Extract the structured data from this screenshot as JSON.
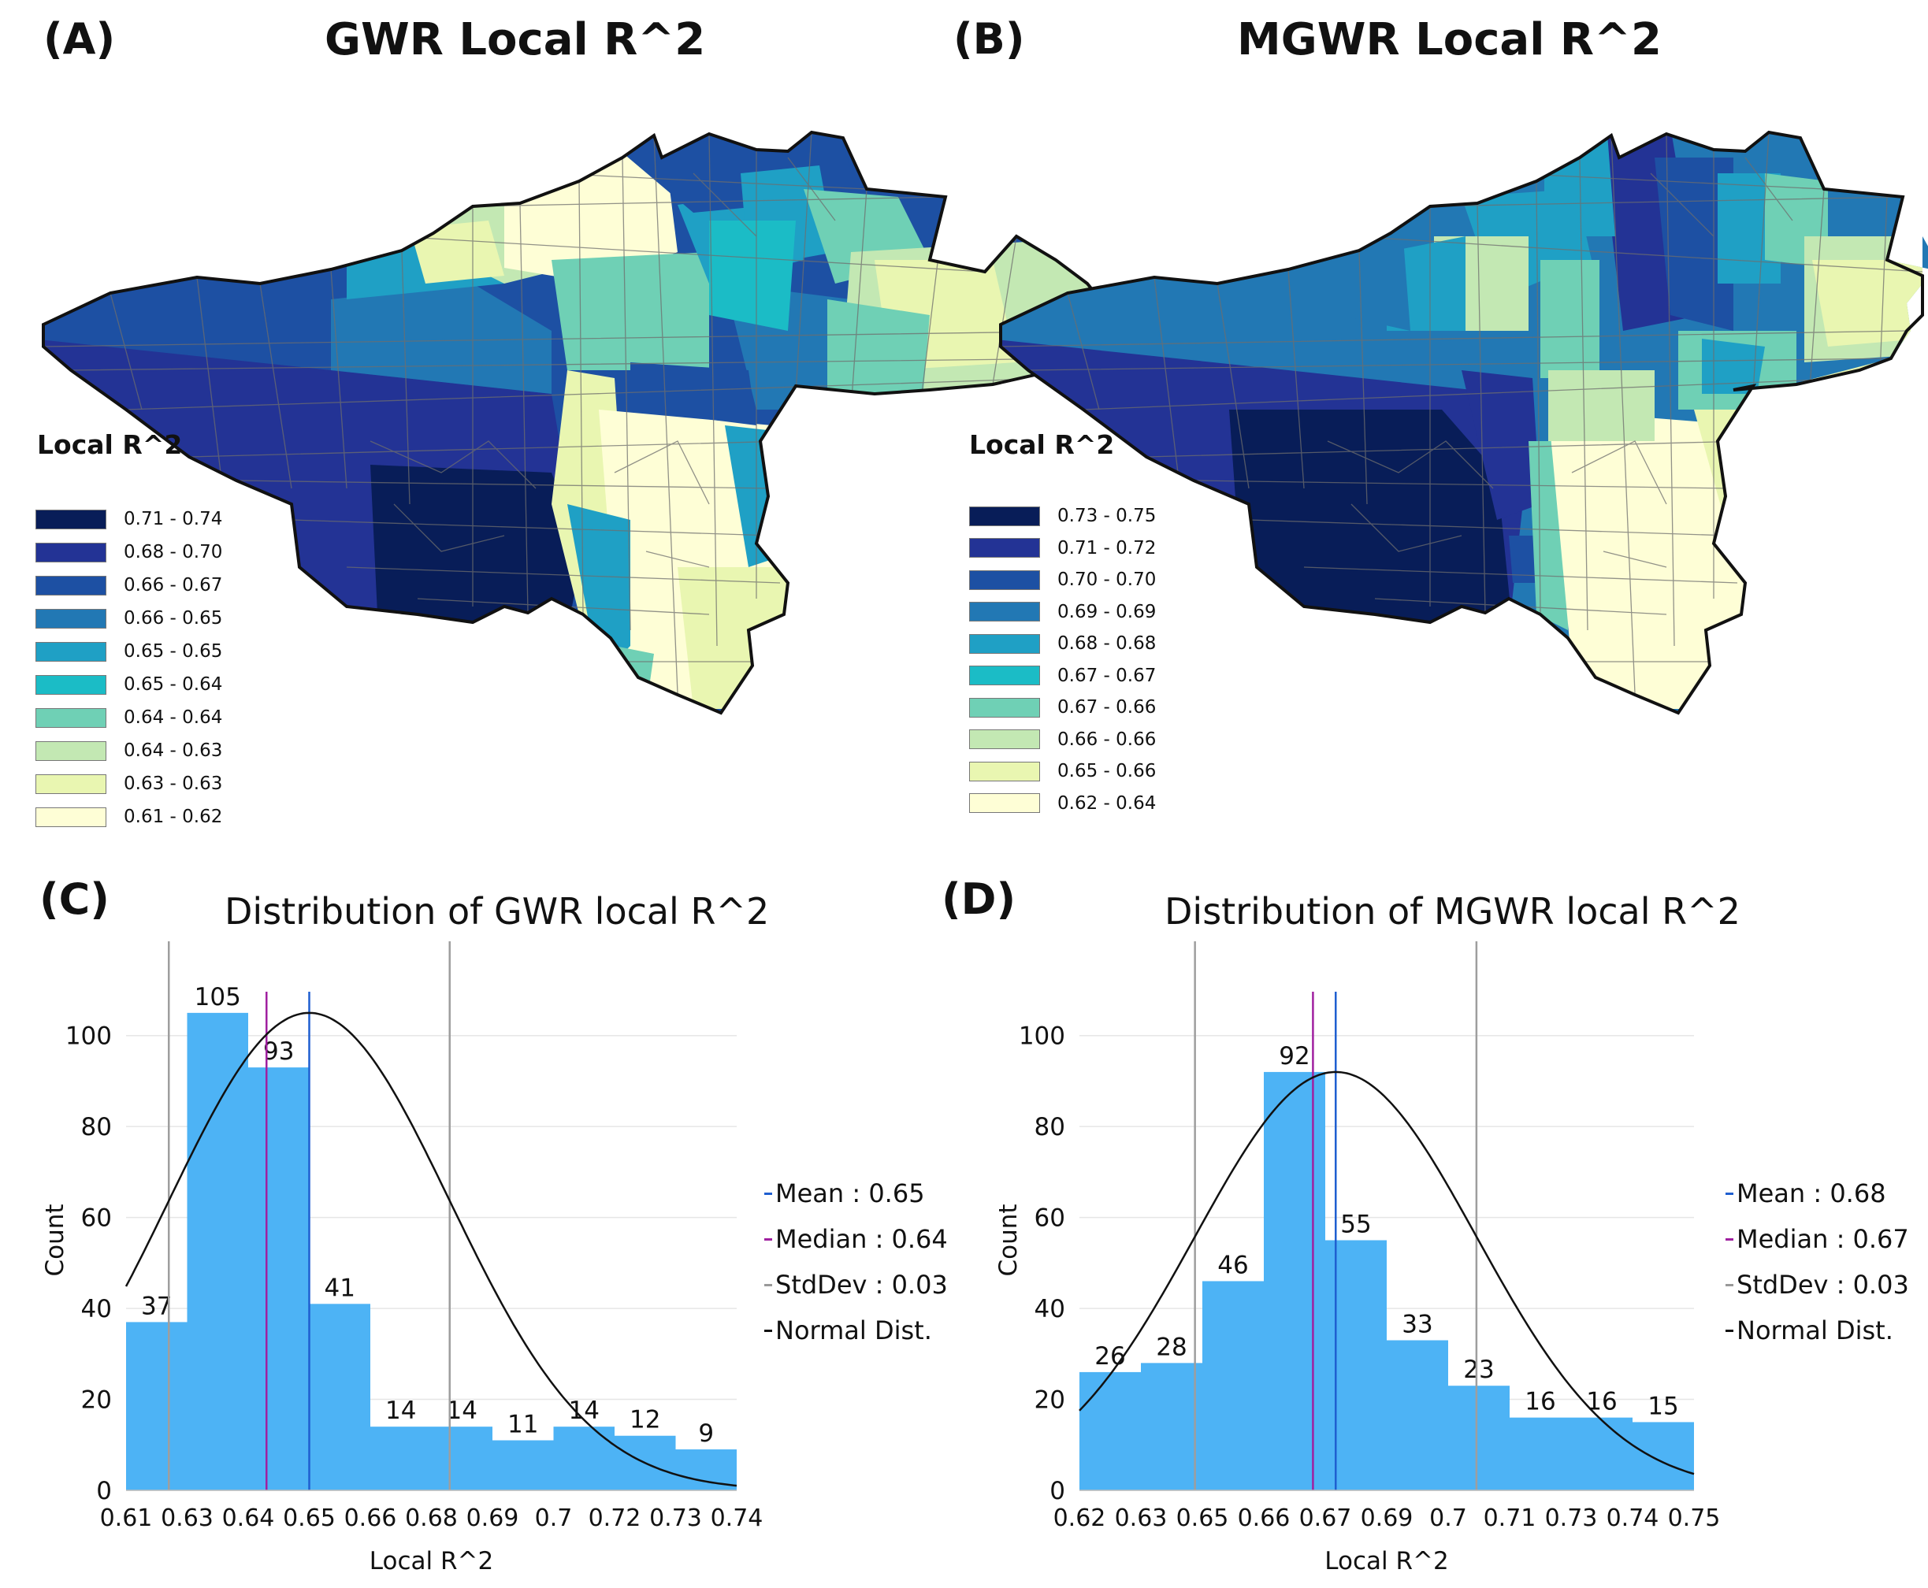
{
  "panels": {
    "A": {
      "label": "(A)",
      "title": "GWR Local R^2",
      "legend_title": "Local R^2",
      "legend": [
        {
          "range": "0.71 - 0.74",
          "color": "#081d58"
        },
        {
          "range": "0.68 - 0.70",
          "color": "#233395"
        },
        {
          "range": "0.66 - 0.67",
          "color": "#1d50a3"
        },
        {
          "range": "0.66 - 0.65",
          "color": "#2278b4"
        },
        {
          "range": "0.65 - 0.65",
          "color": "#1fa0c5"
        },
        {
          "range": "0.65 - 0.64",
          "color": "#1bbcc6"
        },
        {
          "range": "0.64 - 0.64",
          "color": "#6fd0b5"
        },
        {
          "range": "0.64 - 0.63",
          "color": "#c3e8b3"
        },
        {
          "range": "0.63 - 0.63",
          "color": "#e9f6b1"
        },
        {
          "range": "0.61 - 0.62",
          "color": "#fefed6"
        }
      ]
    },
    "B": {
      "label": "(B)",
      "title": "MGWR Local R^2",
      "legend_title": "Local R^2",
      "legend": [
        {
          "range": "0.73 - 0.75",
          "color": "#081d58"
        },
        {
          "range": "0.71 - 0.72",
          "color": "#233395"
        },
        {
          "range": "0.70 - 0.70",
          "color": "#1d50a3"
        },
        {
          "range": "0.69 - 0.69",
          "color": "#2278b4"
        },
        {
          "range": "0.68 - 0.68",
          "color": "#1fa0c5"
        },
        {
          "range": "0.67 - 0.67",
          "color": "#1bbcc6"
        },
        {
          "range": "0.67 - 0.66",
          "color": "#6fd0b5"
        },
        {
          "range": "0.66 - 0.66",
          "color": "#c3e8b3"
        },
        {
          "range": "0.65 - 0.66",
          "color": "#e9f6b1"
        },
        {
          "range": "0.62 - 0.64",
          "color": "#fefed6"
        }
      ]
    },
    "C": {
      "label": "(C)",
      "title": "Distribution of GWR local R^2",
      "stats": [
        {
          "text": "Mean : 0.65",
          "color": "#1f5fd0"
        },
        {
          "text": "Median : 0.64",
          "color": "#a020a0"
        },
        {
          "text": "StdDev : 0.03",
          "color": "#999999"
        },
        {
          "text": "Normal Dist.",
          "color": "#111111"
        }
      ]
    },
    "D": {
      "label": "(D)",
      "title": "Distribution of MGWR local R^2",
      "stats": [
        {
          "text": "Mean : 0.68",
          "color": "#1f5fd0"
        },
        {
          "text": "Median : 0.67",
          "color": "#a020a0"
        },
        {
          "text": "StdDev : 0.03",
          "color": "#999999"
        },
        {
          "text": "Normal Dist.",
          "color": "#111111"
        }
      ]
    }
  },
  "chart_data": [
    {
      "type": "bar",
      "title": "Distribution of GWR local R^2",
      "xlabel": "Local R^2",
      "ylabel": "Count",
      "x_ticks": [
        "0.61",
        "0.63",
        "0.64",
        "0.65",
        "0.66",
        "0.68",
        "0.69",
        "0.7",
        "0.72",
        "0.73",
        "0.74"
      ],
      "values": [
        37,
        105,
        93,
        41,
        14,
        14,
        11,
        14,
        12,
        9
      ],
      "y_ticks": [
        0,
        20,
        40,
        60,
        80,
        100
      ],
      "ylim": [
        0,
        110
      ],
      "bar_color": "#4db3f5",
      "mean": 0.65,
      "median": 0.64,
      "stddev": 0.03,
      "mean_pos": 3.0,
      "median_pos": 2.3,
      "sd_pos": [
        0.7,
        5.3
      ],
      "normal_peak": 105,
      "normal_sigma": 2.3,
      "grid": true
    },
    {
      "type": "bar",
      "title": "Distribution of MGWR local R^2",
      "xlabel": "Local R^2",
      "ylabel": "Count",
      "x_ticks": [
        "0.62",
        "0.63",
        "0.65",
        "0.66",
        "0.67",
        "0.69",
        "0.7",
        "0.71",
        "0.73",
        "0.74",
        "0.75"
      ],
      "values": [
        26,
        28,
        46,
        92,
        55,
        33,
        23,
        16,
        16,
        15
      ],
      "y_ticks": [
        0,
        20,
        40,
        60,
        80,
        100
      ],
      "ylim": [
        0,
        110
      ],
      "bar_color": "#4db3f5",
      "mean": 0.68,
      "median": 0.67,
      "stddev": 0.03,
      "mean_pos": 4.17,
      "median_pos": 3.8,
      "sd_pos": [
        1.88,
        6.46
      ],
      "normal_peak": 92,
      "normal_sigma": 2.29,
      "grid": true
    }
  ]
}
